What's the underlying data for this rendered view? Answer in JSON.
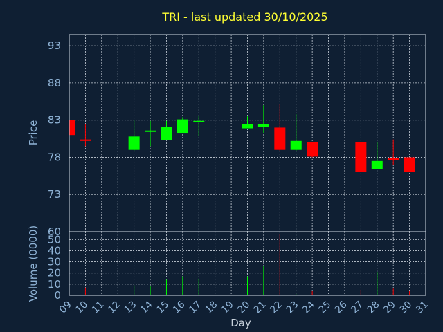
{
  "chart_data": {
    "type": "candlestick",
    "title": "TRI - last updated 30/10/2025",
    "xlabel": "Day",
    "price_panel": {
      "ylabel": "Price",
      "yticks": [
        "93",
        "88",
        "83",
        "78",
        "73"
      ],
      "ytick_values": [
        93,
        88,
        83,
        78,
        73
      ],
      "ylim": [
        68,
        94.5
      ],
      "bottom_tick_label": "60"
    },
    "volume_panel": {
      "ylabel": "Volume (0000)",
      "yticks": [
        "50",
        "40",
        "30",
        "20",
        "10",
        "0"
      ],
      "ytick_values": [
        50,
        40,
        30,
        20,
        10,
        0
      ],
      "ylim": [
        0,
        57
      ]
    },
    "x_ticks": [
      "09",
      "10",
      "11",
      "12",
      "13",
      "14",
      "15",
      "16",
      "17",
      "18",
      "19",
      "20",
      "21",
      "22",
      "23",
      "24",
      "25",
      "26",
      "27",
      "28",
      "29",
      "30",
      "31"
    ],
    "xlim": [
      9,
      31
    ],
    "colors": {
      "up": "#00ff00",
      "down": "#ff0000",
      "title": "#ffff33",
      "axis_text": "#8fb3d6",
      "background": "#0f1f33"
    },
    "candles": [
      {
        "day": 9,
        "open": 83.0,
        "high": 83.0,
        "low": 81.0,
        "close": 81.0,
        "volume": 0
      },
      {
        "day": 10,
        "open": 80.4,
        "high": 82.5,
        "low": 79.5,
        "close": 80.2,
        "volume": 7
      },
      {
        "day": 13,
        "open": 79.0,
        "high": 83.0,
        "low": 78.8,
        "close": 80.8,
        "volume": 9
      },
      {
        "day": 14,
        "open": 81.5,
        "high": 82.9,
        "low": 79.5,
        "close": 81.6,
        "volume": 8
      },
      {
        "day": 15,
        "open": 80.3,
        "high": 82.9,
        "low": 80.3,
        "close": 82.1,
        "volume": 14
      },
      {
        "day": 16,
        "open": 81.2,
        "high": 83.4,
        "low": 81.2,
        "close": 83.1,
        "volume": 17
      },
      {
        "day": 17,
        "open": 82.8,
        "high": 83.6,
        "low": 80.9,
        "close": 82.9,
        "volume": 15
      },
      {
        "day": 20,
        "open": 81.9,
        "high": 83.5,
        "low": 81.9,
        "close": 82.5,
        "volume": 17
      },
      {
        "day": 21,
        "open": 82.1,
        "high": 85.0,
        "low": 81.2,
        "close": 82.5,
        "volume": 26
      },
      {
        "day": 22,
        "open": 82.0,
        "high": 85.2,
        "low": 78.8,
        "close": 79.0,
        "volume": 55
      },
      {
        "day": 23,
        "open": 79.0,
        "high": 83.8,
        "low": 78.8,
        "close": 80.2,
        "volume": 1
      },
      {
        "day": 24,
        "open": 80.0,
        "high": 80.0,
        "low": 78.0,
        "close": 78.1,
        "volume": 4
      },
      {
        "day": 27,
        "open": 80.0,
        "high": 80.0,
        "low": 76.0,
        "close": 76.0,
        "volume": 5
      },
      {
        "day": 28,
        "open": 76.4,
        "high": 80.0,
        "low": 76.4,
        "close": 77.5,
        "volume": 21
      },
      {
        "day": 29,
        "open": 77.9,
        "high": 80.4,
        "low": 77.0,
        "close": 77.6,
        "volume": 6
      },
      {
        "day": 30,
        "open": 78.0,
        "high": 78.0,
        "low": 76.0,
        "close": 76.0,
        "volume": 4
      }
    ]
  }
}
